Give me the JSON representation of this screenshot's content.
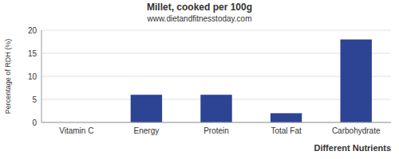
{
  "chart_data": {
    "type": "bar",
    "title": "Millet, cooked per 100g",
    "subtitle": "www.dietandfitnesstoday.com",
    "xlabel": "Different Nutrients",
    "ylabel": "Percentage of RDH (%)",
    "categories": [
      "Vitamin C",
      "Energy",
      "Protein",
      "Total Fat",
      "Carbohydrate"
    ],
    "values": [
      0,
      6,
      6,
      2,
      18
    ],
    "color": "#2d4494",
    "ylim": [
      0,
      20
    ],
    "yticks": [
      0,
      5,
      10,
      15,
      20
    ],
    "grid": true
  }
}
